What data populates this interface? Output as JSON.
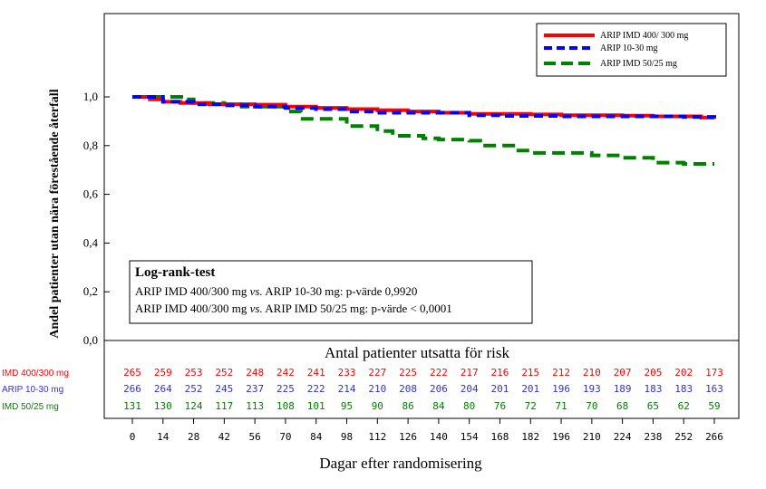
{
  "chart_data": {
    "type": "line",
    "subtype": "kaplan-meier",
    "ylabel": "Andel patienter utan nära förestående återfall",
    "xlabel": "Dagar efter randomisering",
    "y_ticks": [
      "0,0",
      "0,2",
      "0,4",
      "0,6",
      "0,8",
      "1,0"
    ],
    "y_tick_values": [
      0.0,
      0.2,
      0.4,
      0.6,
      0.8,
      1.0
    ],
    "ylim": [
      0,
      1.2
    ],
    "x_ticks": [
      "0",
      "14",
      "28",
      "42",
      "56",
      "70",
      "84",
      "98",
      "112",
      "126",
      "140",
      "154",
      "168",
      "182",
      "196",
      "210",
      "224",
      "238",
      "252",
      "266"
    ],
    "xlim": [
      -10,
      276
    ],
    "legend_placement": "top-right",
    "series": [
      {
        "name": "ARIP IMD 400/ 300 mg",
        "color": "#ff0000",
        "dash": "solid",
        "points": [
          [
            0,
            1.0
          ],
          [
            8,
            0.99
          ],
          [
            14,
            0.98
          ],
          [
            22,
            0.975
          ],
          [
            35,
            0.97
          ],
          [
            56,
            0.968
          ],
          [
            70,
            0.96
          ],
          [
            84,
            0.955
          ],
          [
            98,
            0.95
          ],
          [
            112,
            0.945
          ],
          [
            126,
            0.94
          ],
          [
            140,
            0.935
          ],
          [
            154,
            0.93
          ],
          [
            168,
            0.93
          ],
          [
            182,
            0.928
          ],
          [
            196,
            0.925
          ],
          [
            210,
            0.925
          ],
          [
            224,
            0.923
          ],
          [
            238,
            0.92
          ],
          [
            252,
            0.92
          ],
          [
            260,
            0.915
          ],
          [
            266,
            0.91
          ]
        ]
      },
      {
        "name": "ARIP 10-30 mg",
        "color": "#0000ff",
        "dash": "dashed",
        "points": [
          [
            0,
            1.0
          ],
          [
            10,
            1.0
          ],
          [
            14,
            0.98
          ],
          [
            28,
            0.97
          ],
          [
            42,
            0.965
          ],
          [
            56,
            0.96
          ],
          [
            70,
            0.955
          ],
          [
            84,
            0.95
          ],
          [
            98,
            0.94
          ],
          [
            112,
            0.935
          ],
          [
            126,
            0.935
          ],
          [
            140,
            0.935
          ],
          [
            154,
            0.925
          ],
          [
            168,
            0.922
          ],
          [
            182,
            0.922
          ],
          [
            196,
            0.92
          ],
          [
            210,
            0.92
          ],
          [
            224,
            0.92
          ],
          [
            238,
            0.92
          ],
          [
            252,
            0.918
          ],
          [
            266,
            0.915
          ]
        ]
      },
      {
        "name": "ARIP IMD 50/25 mg",
        "color": "#008000",
        "dash": "longdash",
        "points": [
          [
            0,
            1.0
          ],
          [
            14,
            1.0
          ],
          [
            24,
            0.99
          ],
          [
            28,
            0.975
          ],
          [
            42,
            0.97
          ],
          [
            50,
            0.96
          ],
          [
            70,
            0.94
          ],
          [
            77,
            0.91
          ],
          [
            98,
            0.88
          ],
          [
            112,
            0.86
          ],
          [
            119,
            0.84
          ],
          [
            133,
            0.83
          ],
          [
            140,
            0.825
          ],
          [
            154,
            0.82
          ],
          [
            159,
            0.8
          ],
          [
            168,
            0.8
          ],
          [
            175,
            0.78
          ],
          [
            182,
            0.77
          ],
          [
            196,
            0.77
          ],
          [
            210,
            0.76
          ],
          [
            224,
            0.75
          ],
          [
            238,
            0.73
          ],
          [
            252,
            0.725
          ],
          [
            266,
            0.725
          ]
        ]
      }
    ],
    "annotation": {
      "title": "Log-rank-test",
      "line1_pre": "ARIP IMD 400/300 mg ",
      "vs": "vs.",
      "line1_post": " ARIP 10-30 mg: p-värde 0,9920",
      "line2_pre": "ARIP IMD 400/300 mg ",
      "line2_post": " ARIP IMD 50/25 mg: p-värde < 0,0001"
    },
    "risk_table": {
      "title": "Antal patienter utsatta för risk",
      "rows": [
        {
          "label": "IMD 400/300 mg",
          "color": "#ff0000",
          "values": [
            "265",
            "259",
            "253",
            "252",
            "248",
            "242",
            "241",
            "233",
            "227",
            "225",
            "222",
            "217",
            "216",
            "215",
            "212",
            "210",
            "207",
            "205",
            "202",
            "173"
          ]
        },
        {
          "label": "ARIP 10-30 mg",
          "color": "#3333cc",
          "values": [
            "266",
            "264",
            "252",
            "245",
            "237",
            "225",
            "222",
            "214",
            "210",
            "208",
            "206",
            "204",
            "201",
            "201",
            "196",
            "193",
            "189",
            "183",
            "183",
            "163"
          ]
        },
        {
          "label": "IMD 50/25 mg",
          "color": "#008000",
          "values": [
            "131",
            "130",
            "124",
            "117",
            "113",
            "108",
            "101",
            "95",
            "90",
            "86",
            "84",
            "80",
            "76",
            "72",
            "71",
            "70",
            "68",
            "65",
            "62",
            "59"
          ]
        }
      ]
    }
  }
}
